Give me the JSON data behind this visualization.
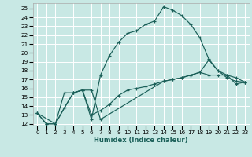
{
  "xlabel": "Humidex (Indice chaleur)",
  "bg_color": "#c8e8e4",
  "line_color": "#1a5f58",
  "xlim": [
    -0.5,
    23.5
  ],
  "ylim": [
    11.8,
    25.6
  ],
  "xticks": [
    0,
    1,
    2,
    3,
    4,
    5,
    6,
    7,
    8,
    9,
    10,
    11,
    12,
    13,
    14,
    15,
    16,
    17,
    18,
    19,
    20,
    21,
    22,
    23
  ],
  "yticks": [
    12,
    13,
    14,
    15,
    16,
    17,
    18,
    19,
    20,
    21,
    22,
    23,
    24,
    25
  ],
  "line1_x": [
    0,
    1,
    2,
    3,
    4,
    5,
    6,
    7,
    8,
    9,
    10,
    11,
    12,
    13,
    14,
    15,
    16,
    17,
    18,
    19,
    20,
    21,
    22,
    23
  ],
  "line1_y": [
    13.2,
    12.0,
    12.0,
    15.5,
    15.5,
    15.8,
    12.5,
    17.5,
    19.7,
    21.2,
    22.2,
    22.5,
    23.2,
    23.6,
    25.2,
    24.8,
    24.2,
    23.2,
    21.7,
    19.3,
    18.0,
    17.2,
    16.8,
    16.7
  ],
  "line2_x": [
    0,
    1,
    2,
    3,
    4,
    5,
    6,
    7,
    8,
    9,
    10,
    11,
    12,
    13,
    14,
    15,
    16,
    17,
    18,
    19,
    20,
    21,
    22,
    23
  ],
  "line2_y": [
    13.2,
    12.0,
    12.0,
    13.8,
    15.5,
    15.8,
    13.0,
    13.5,
    14.2,
    15.2,
    15.8,
    16.0,
    16.2,
    16.5,
    16.8,
    17.0,
    17.2,
    17.5,
    17.8,
    19.2,
    18.0,
    17.5,
    16.5,
    16.7
  ],
  "line3_x": [
    0,
    2,
    3,
    4,
    5,
    6,
    7,
    14,
    15,
    16,
    17,
    18,
    19,
    20,
    21,
    22,
    23
  ],
  "line3_y": [
    13.2,
    12.0,
    13.8,
    15.5,
    15.8,
    15.8,
    12.5,
    16.8,
    17.0,
    17.2,
    17.5,
    17.8,
    17.5,
    17.5,
    17.5,
    17.2,
    16.7
  ]
}
